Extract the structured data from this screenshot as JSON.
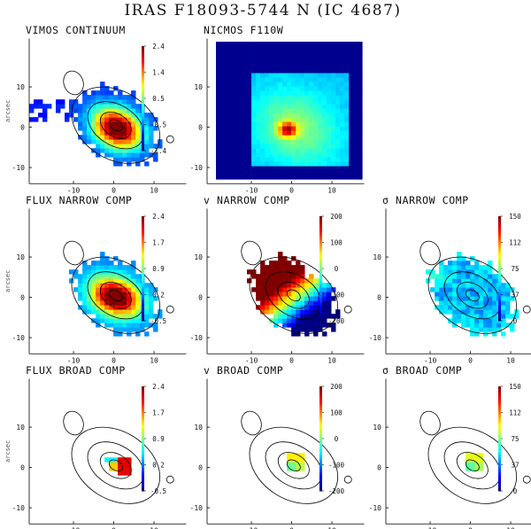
{
  "figure": {
    "title": "IRAS F18093-5744 N (IC 4687)",
    "axis_label": "arcsec",
    "x_ticks": [
      "-10",
      "0",
      "10"
    ],
    "y_ticks": [
      "10",
      "0",
      "-10"
    ],
    "colormap": "jet",
    "colors": {
      "background": "#ffffff",
      "contour": "#000000",
      "nicmos_frame": "#00008f"
    },
    "panels": [
      {
        "id": "vimos-continuum",
        "title": "VIMOS CONTINUUM",
        "map": "continuum",
        "colorbar": [
          "2.4",
          "1.4",
          "0.5",
          "-0.5",
          "-1.4"
        ]
      },
      {
        "id": "nicmos-f110w",
        "title": "NICMOS F110W",
        "map": "nicmos",
        "colorbar": []
      },
      {
        "id": "flux-narrow",
        "title": "FLUX NARROW COMP",
        "map": "flux_narrow",
        "colorbar": [
          "2.4",
          "1.7",
          "0.9",
          "0.2",
          "-0.5"
        ]
      },
      {
        "id": "v-narrow",
        "title": "v NARROW COMP",
        "map": "v_narrow",
        "colorbar": [
          "200",
          "100",
          "0",
          "-100",
          "-200"
        ]
      },
      {
        "id": "sigma-narrow",
        "title": "σ NARROW COMP",
        "map": "sigma_narrow",
        "colorbar": [
          "150",
          "112",
          "75",
          "37",
          "0"
        ]
      },
      {
        "id": "flux-broad",
        "title": "FLUX BROAD COMP",
        "map": "flux_broad",
        "colorbar": [
          "2.4",
          "1.7",
          "0.9",
          "0.2",
          "-0.5"
        ]
      },
      {
        "id": "v-broad",
        "title": "v BROAD COMP",
        "map": "v_broad",
        "colorbar": [
          "200",
          "100",
          "0",
          "-100",
          "-200"
        ]
      },
      {
        "id": "sigma-broad",
        "title": "σ BROAD COMP",
        "map": "sigma_broad",
        "colorbar": [
          "150",
          "112",
          "75",
          "37",
          "0"
        ]
      }
    ]
  }
}
